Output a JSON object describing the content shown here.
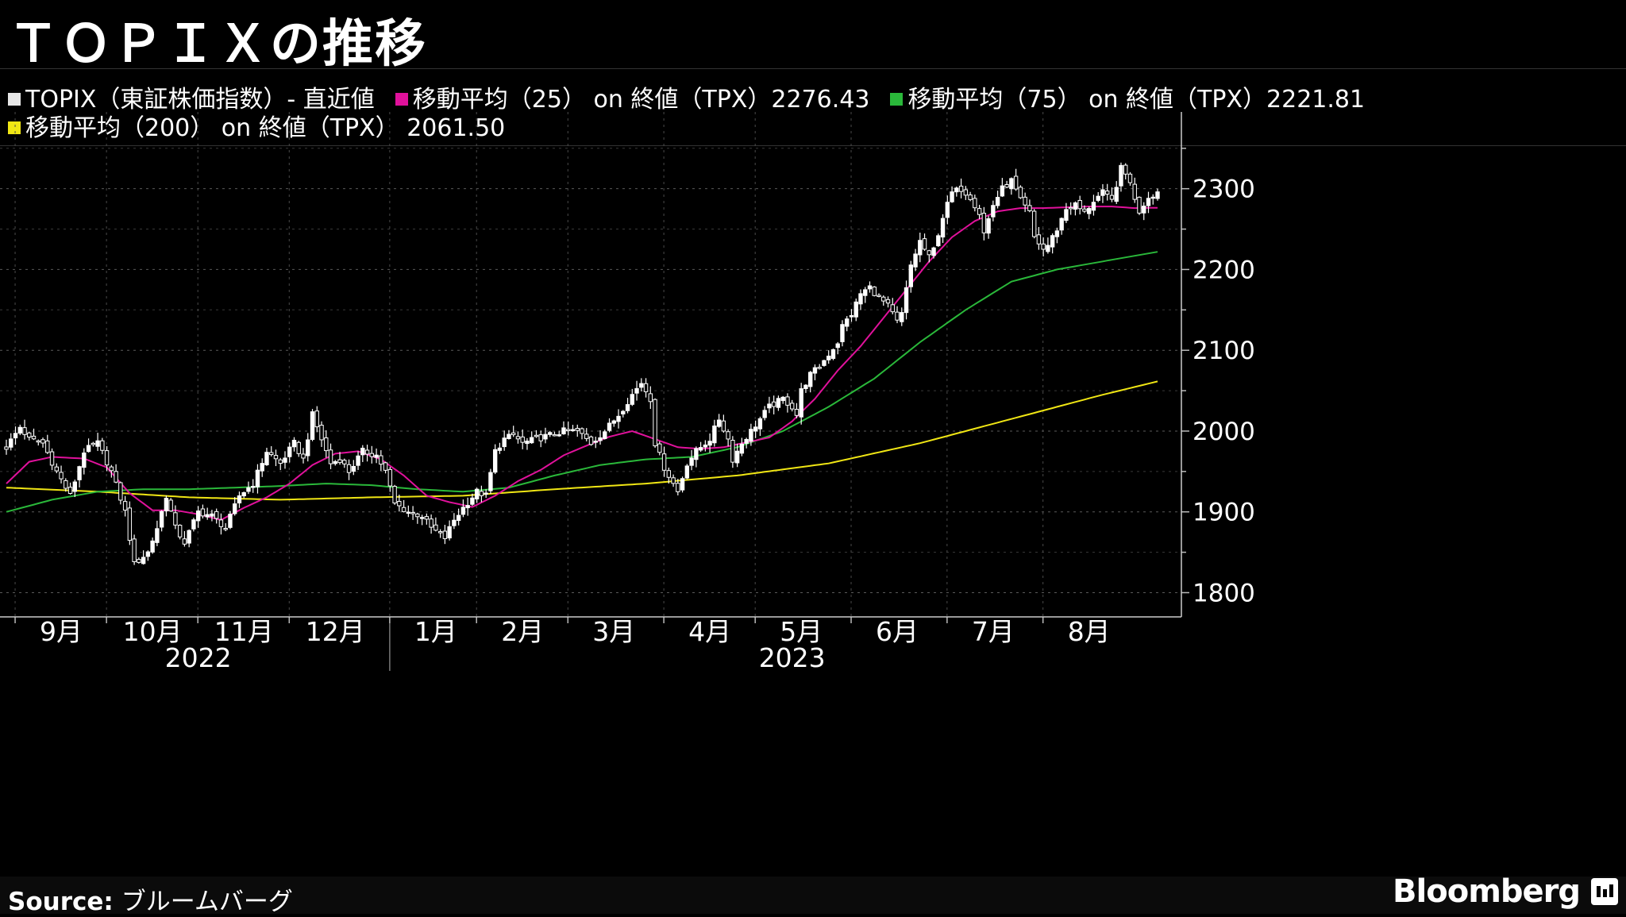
{
  "title": "ＴＯＰＩＸの推移",
  "legend": [
    {
      "label": "TOPIX（東証株価指数）- 直近値",
      "color": "#e6e6e6"
    },
    {
      "label": "移動平均（25） on 終値（TPX）2276.43",
      "color": "#e0119b"
    },
    {
      "label": "移動平均（75） on 終値（TPX）2221.81",
      "color": "#2ab83a"
    },
    {
      "label": "移動平均（200） on 終値（TPX） 2061.50",
      "color": "#f0e614"
    }
  ],
  "source_label": "Source:",
  "source_text": "ブルームバーグ",
  "brand": "Bloomberg",
  "brand_icon": "bloomberg-terminal-icon",
  "chart_data": {
    "type": "candlestick",
    "title": "ＴＯＰＩＸの推移",
    "ylim": [
      1770,
      2395
    ],
    "yticks": [
      1800,
      1900,
      2000,
      2100,
      2200,
      2300
    ],
    "x_range": [
      0,
      252
    ],
    "month_ticks": [
      {
        "label": "9月",
        "x": 12
      },
      {
        "label": "10月",
        "x": 32
      },
      {
        "label": "11月",
        "x": 52
      },
      {
        "label": "12月",
        "x": 72
      },
      {
        "label": "1月",
        "x": 94
      },
      {
        "label": "2月",
        "x": 113
      },
      {
        "label": "3月",
        "x": 133
      },
      {
        "label": "4月",
        "x": 154
      },
      {
        "label": "5月",
        "x": 174
      },
      {
        "label": "6月",
        "x": 195
      },
      {
        "label": "7月",
        "x": 216
      },
      {
        "label": "8月",
        "x": 237
      }
    ],
    "years": [
      {
        "label": "2022",
        "x": 42
      },
      {
        "label": "2023",
        "x": 172
      }
    ],
    "year_divider_x": 94,
    "close_anchors": [
      [
        0,
        1980
      ],
      [
        3,
        2005
      ],
      [
        5,
        1990
      ],
      [
        8,
        1985
      ],
      [
        11,
        1950
      ],
      [
        14,
        1920
      ],
      [
        17,
        1975
      ],
      [
        20,
        1985
      ],
      [
        23,
        1950
      ],
      [
        26,
        1900
      ],
      [
        28,
        1835
      ],
      [
        31,
        1850
      ],
      [
        33,
        1880
      ],
      [
        35,
        1920
      ],
      [
        37,
        1880
      ],
      [
        39,
        1862
      ],
      [
        42,
        1900
      ],
      [
        45,
        1895
      ],
      [
        48,
        1880
      ],
      [
        51,
        1920
      ],
      [
        54,
        1935
      ],
      [
        57,
        1975
      ],
      [
        60,
        1960
      ],
      [
        63,
        1985
      ],
      [
        65,
        1965
      ],
      [
        67,
        2020
      ],
      [
        69,
        1990
      ],
      [
        71,
        1960
      ],
      [
        73,
        1965
      ],
      [
        75,
        1950
      ],
      [
        78,
        1975
      ],
      [
        81,
        1970
      ],
      [
        83,
        1950
      ],
      [
        85,
        1910
      ],
      [
        88,
        1900
      ],
      [
        91,
        1895
      ],
      [
        93,
        1880
      ],
      [
        96,
        1868
      ],
      [
        98,
        1890
      ],
      [
        100,
        1905
      ],
      [
        103,
        1925
      ],
      [
        105,
        1920
      ],
      [
        107,
        1975
      ],
      [
        109,
        1990
      ],
      [
        111,
        1995
      ],
      [
        113,
        1985
      ],
      [
        116,
        1990
      ],
      [
        119,
        1995
      ],
      [
        122,
        2000
      ],
      [
        125,
        2000
      ],
      [
        128,
        1985
      ],
      [
        131,
        2000
      ],
      [
        134,
        2020
      ],
      [
        137,
        2045
      ],
      [
        139,
        2060
      ],
      [
        141,
        2040
      ],
      [
        142,
        1985
      ],
      [
        144,
        1955
      ],
      [
        146,
        1935
      ],
      [
        147,
        1925
      ],
      [
        149,
        1960
      ],
      [
        151,
        1975
      ],
      [
        154,
        1990
      ],
      [
        156,
        2015
      ],
      [
        158,
        1990
      ],
      [
        159,
        1965
      ],
      [
        161,
        1985
      ],
      [
        163,
        2000
      ],
      [
        165,
        2015
      ],
      [
        167,
        2030
      ],
      [
        170,
        2040
      ],
      [
        172,
        2030
      ],
      [
        173,
        2020
      ],
      [
        174,
        2050
      ],
      [
        176,
        2070
      ],
      [
        178,
        2080
      ],
      [
        180,
        2095
      ],
      [
        182,
        2110
      ],
      [
        183,
        2130
      ],
      [
        185,
        2145
      ],
      [
        187,
        2170
      ],
      [
        189,
        2178
      ],
      [
        191,
        2165
      ],
      [
        193,
        2155
      ],
      [
        195,
        2135
      ],
      [
        196,
        2145
      ],
      [
        197,
        2175
      ],
      [
        198,
        2205
      ],
      [
        200,
        2235
      ],
      [
        202,
        2215
      ],
      [
        203,
        2225
      ],
      [
        205,
        2265
      ],
      [
        207,
        2295
      ],
      [
        209,
        2300
      ],
      [
        211,
        2290
      ],
      [
        213,
        2270
      ],
      [
        214,
        2245
      ],
      [
        216,
        2280
      ],
      [
        218,
        2300
      ],
      [
        220,
        2310
      ],
      [
        222,
        2285
      ],
      [
        224,
        2270
      ],
      [
        225,
        2240
      ],
      [
        227,
        2225
      ],
      [
        228,
        2230
      ],
      [
        230,
        2250
      ],
      [
        232,
        2275
      ],
      [
        234,
        2280
      ],
      [
        236,
        2270
      ],
      [
        238,
        2285
      ],
      [
        240,
        2295
      ],
      [
        242,
        2285
      ],
      [
        244,
        2325
      ],
      [
        246,
        2310
      ],
      [
        247,
        2285
      ],
      [
        248,
        2272
      ],
      [
        250,
        2290
      ],
      [
        252,
        2296
      ]
    ],
    "ma25": [
      [
        0,
        1935
      ],
      [
        5,
        1962
      ],
      [
        10,
        1968
      ],
      [
        17,
        1966
      ],
      [
        22,
        1955
      ],
      [
        27,
        1923
      ],
      [
        32,
        1902
      ],
      [
        37,
        1902
      ],
      [
        42,
        1897
      ],
      [
        47,
        1890
      ],
      [
        52,
        1905
      ],
      [
        57,
        1918
      ],
      [
        62,
        1935
      ],
      [
        67,
        1958
      ],
      [
        72,
        1972
      ],
      [
        77,
        1975
      ],
      [
        82,
        1965
      ],
      [
        87,
        1945
      ],
      [
        92,
        1920
      ],
      [
        97,
        1912
      ],
      [
        102,
        1906
      ],
      [
        107,
        1920
      ],
      [
        112,
        1938
      ],
      [
        117,
        1952
      ],
      [
        122,
        1970
      ],
      [
        127,
        1982
      ],
      [
        132,
        1993
      ],
      [
        137,
        2000
      ],
      [
        142,
        1990
      ],
      [
        147,
        1980
      ],
      [
        152,
        1978
      ],
      [
        157,
        1980
      ],
      [
        162,
        1986
      ],
      [
        167,
        1992
      ],
      [
        172,
        2012
      ],
      [
        177,
        2040
      ],
      [
        182,
        2075
      ],
      [
        187,
        2105
      ],
      [
        192,
        2140
      ],
      [
        197,
        2175
      ],
      [
        202,
        2210
      ],
      [
        207,
        2240
      ],
      [
        212,
        2260
      ],
      [
        217,
        2272
      ],
      [
        222,
        2276
      ],
      [
        227,
        2276
      ],
      [
        232,
        2277
      ],
      [
        237,
        2278
      ],
      [
        242,
        2278
      ],
      [
        247,
        2276
      ],
      [
        252,
        2276.43
      ]
    ],
    "ma75": [
      [
        0,
        1900
      ],
      [
        10,
        1915
      ],
      [
        20,
        1925
      ],
      [
        30,
        1928
      ],
      [
        40,
        1928
      ],
      [
        50,
        1930
      ],
      [
        60,
        1932
      ],
      [
        70,
        1935
      ],
      [
        80,
        1933
      ],
      [
        90,
        1928
      ],
      [
        100,
        1925
      ],
      [
        110,
        1930
      ],
      [
        120,
        1945
      ],
      [
        130,
        1958
      ],
      [
        140,
        1965
      ],
      [
        150,
        1968
      ],
      [
        160,
        1980
      ],
      [
        170,
        2000
      ],
      [
        180,
        2030
      ],
      [
        190,
        2065
      ],
      [
        200,
        2110
      ],
      [
        210,
        2150
      ],
      [
        220,
        2185
      ],
      [
        230,
        2200
      ],
      [
        240,
        2210
      ],
      [
        246,
        2216
      ],
      [
        252,
        2221.81
      ]
    ],
    "ma200": [
      [
        0,
        1930
      ],
      [
        20,
        1925
      ],
      [
        40,
        1918
      ],
      [
        60,
        1915
      ],
      [
        80,
        1918
      ],
      [
        100,
        1920
      ],
      [
        120,
        1928
      ],
      [
        140,
        1935
      ],
      [
        160,
        1945
      ],
      [
        180,
        1960
      ],
      [
        200,
        1985
      ],
      [
        220,
        2015
      ],
      [
        240,
        2045
      ],
      [
        252,
        2061.5
      ]
    ]
  }
}
